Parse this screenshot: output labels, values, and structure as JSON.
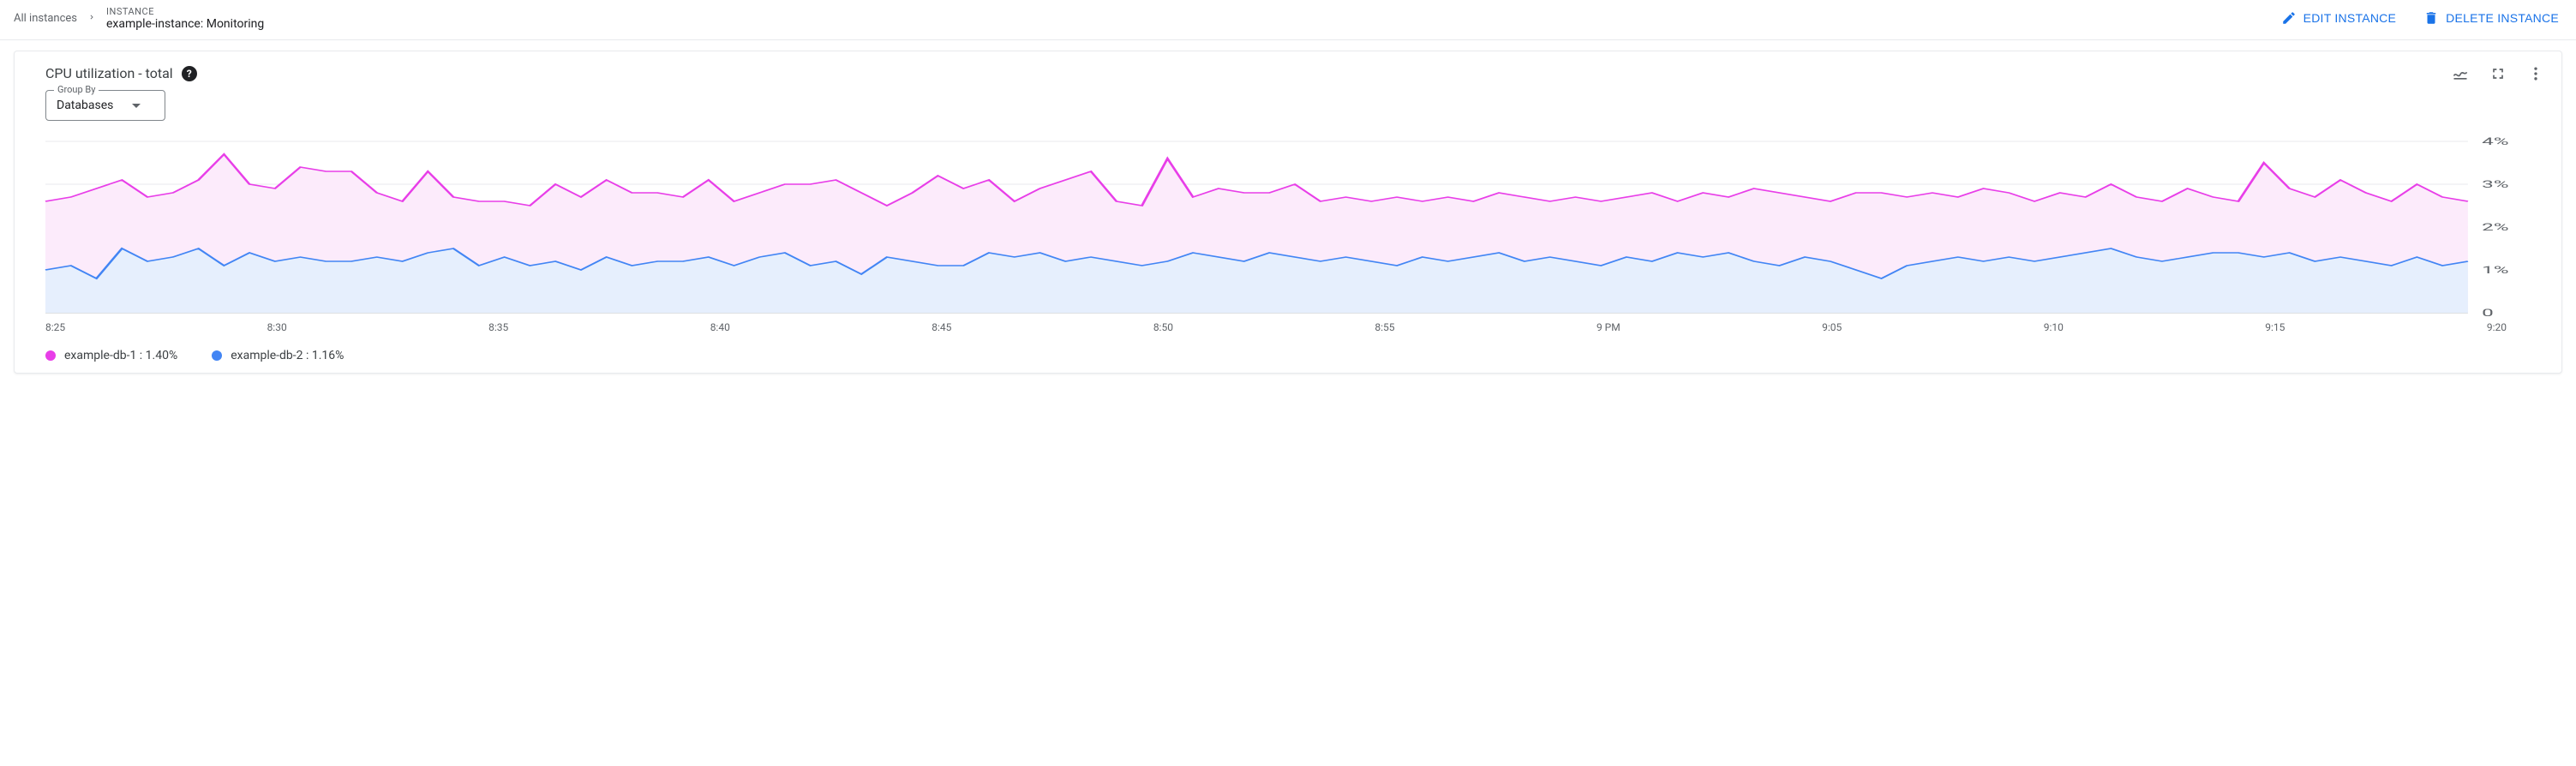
{
  "breadcrumb": {
    "all_label": "All instances",
    "eyebrow": "INSTANCE",
    "title": "example-instance: Monitoring"
  },
  "actions": {
    "edit_label": "EDIT INSTANCE",
    "delete_label": "DELETE INSTANCE"
  },
  "chart": {
    "title": "CPU utilization - total",
    "groupby_label": "Group By",
    "groupby_value": "Databases",
    "type": "area",
    "background_color": "#ffffff",
    "grid_color": "#e8eaed",
    "text_color": "#5f6368",
    "y_axis": {
      "min": 0,
      "max": 4,
      "ticks": [
        0,
        1,
        2,
        3,
        4
      ],
      "tick_labels": [
        "0",
        "1%",
        "2%",
        "3%",
        "4%"
      ]
    },
    "x_axis": {
      "tick_labels": [
        "8:25",
        "8:30",
        "8:35",
        "8:40",
        "8:45",
        "8:50",
        "8:55",
        "9 PM",
        "9:05",
        "9:10",
        "9:15",
        "9:20"
      ]
    },
    "series": [
      {
        "name": "example-db-1",
        "legend_value": "1.40%",
        "line_color": "#e83ee8",
        "fill_color": "#fcebfb",
        "line_width": 1.5,
        "values": [
          2.6,
          2.7,
          2.9,
          3.1,
          2.7,
          2.8,
          3.1,
          3.7,
          3.0,
          2.9,
          3.4,
          3.3,
          3.3,
          2.8,
          2.6,
          3.3,
          2.7,
          2.6,
          2.6,
          2.5,
          3.0,
          2.7,
          3.1,
          2.8,
          2.8,
          2.7,
          3.1,
          2.6,
          2.8,
          3.0,
          3.0,
          3.1,
          2.8,
          2.5,
          2.8,
          3.2,
          2.9,
          3.1,
          2.6,
          2.9,
          3.1,
          3.3,
          2.6,
          2.5,
          3.6,
          2.7,
          2.9,
          2.8,
          2.8,
          3.0,
          2.6,
          2.7,
          2.6,
          2.7,
          2.6,
          2.7,
          2.6,
          2.8,
          2.7,
          2.6,
          2.7,
          2.6,
          2.7,
          2.8,
          2.6,
          2.8,
          2.7,
          2.9,
          2.8,
          2.7,
          2.6,
          2.8,
          2.8,
          2.7,
          2.8,
          2.7,
          2.9,
          2.8,
          2.6,
          2.8,
          2.7,
          3.0,
          2.7,
          2.6,
          2.9,
          2.7,
          2.6,
          3.5,
          2.9,
          2.7,
          3.1,
          2.8,
          2.6,
          3.0,
          2.7,
          2.6
        ]
      },
      {
        "name": "example-db-2",
        "legend_value": "1.16%",
        "line_color": "#4285f4",
        "fill_color": "#e6effd",
        "line_width": 1.5,
        "values": [
          1.0,
          1.1,
          0.8,
          1.5,
          1.2,
          1.3,
          1.5,
          1.1,
          1.4,
          1.2,
          1.3,
          1.2,
          1.2,
          1.3,
          1.2,
          1.4,
          1.5,
          1.1,
          1.3,
          1.1,
          1.2,
          1.0,
          1.3,
          1.1,
          1.2,
          1.2,
          1.3,
          1.1,
          1.3,
          1.4,
          1.1,
          1.2,
          0.9,
          1.3,
          1.2,
          1.1,
          1.1,
          1.4,
          1.3,
          1.4,
          1.2,
          1.3,
          1.2,
          1.1,
          1.2,
          1.4,
          1.3,
          1.2,
          1.4,
          1.3,
          1.2,
          1.3,
          1.2,
          1.1,
          1.3,
          1.2,
          1.3,
          1.4,
          1.2,
          1.3,
          1.2,
          1.1,
          1.3,
          1.2,
          1.4,
          1.3,
          1.4,
          1.2,
          1.1,
          1.3,
          1.2,
          1.0,
          0.8,
          1.1,
          1.2,
          1.3,
          1.2,
          1.3,
          1.2,
          1.3,
          1.4,
          1.5,
          1.3,
          1.2,
          1.3,
          1.4,
          1.4,
          1.3,
          1.4,
          1.2,
          1.3,
          1.2,
          1.1,
          1.3,
          1.1,
          1.2
        ]
      }
    ]
  }
}
